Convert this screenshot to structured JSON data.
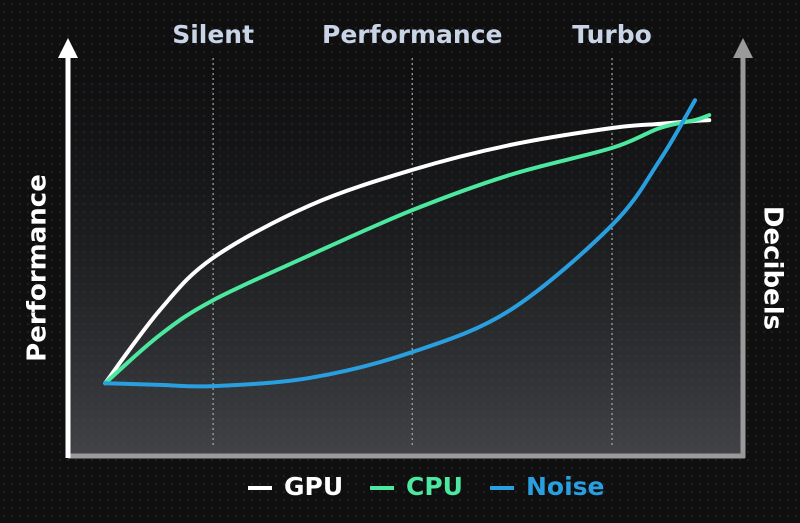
{
  "chart_data": {
    "type": "line",
    "x": [
      5.5,
      13.6,
      21.5,
      35.9,
      51,
      65.5,
      80.6,
      87.7,
      92.9,
      95
    ],
    "xlim": [
      0,
      100
    ],
    "xticks": [
      {
        "value": 21.5,
        "label": "Silent"
      },
      {
        "value": 51,
        "label": "Performance"
      },
      {
        "value": 80.6,
        "label": "Turbo"
      }
    ],
    "ylim": [
      0,
      100
    ],
    "ylabel": "Performance",
    "y2label": "Decibels",
    "grid": true,
    "series": [
      {
        "name": "GPU",
        "color": "#ffffff",
        "values": [
          17.3,
          34.9,
          47.5,
          60.2,
          68.7,
          74.7,
          78.8,
          79.8,
          80.5,
          80.7
        ]
      },
      {
        "name": "CPU",
        "color": "#4de8a0",
        "values": [
          17.3,
          28.9,
          37.3,
          48.2,
          59.0,
          67.5,
          74.0,
          78.8,
          80.7,
          81.9
        ]
      },
      {
        "name": "Noise",
        "color": "#2a9fe0",
        "values": [
          17.3,
          16.9,
          16.6,
          18.6,
          24.8,
          34.9,
          55.4,
          71.1,
          85.5,
          null
        ]
      }
    ]
  }
}
